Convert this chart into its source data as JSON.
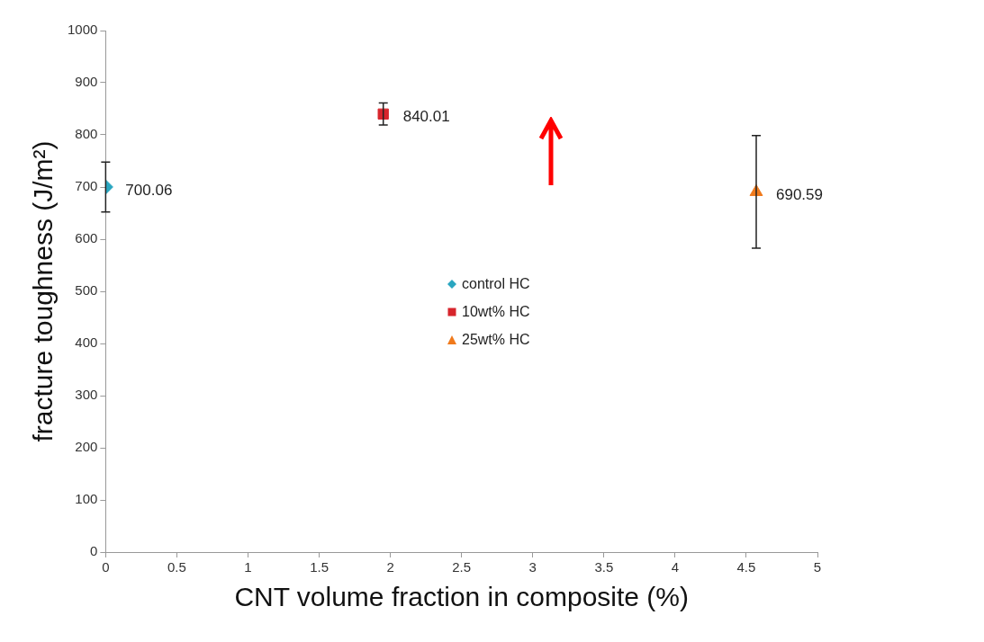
{
  "chart_data": {
    "type": "scatter",
    "xlabel": "CNT volume fraction in composite (%)",
    "ylabel": "fracture toughness (J/m²)",
    "series": [
      {
        "name": "control HC",
        "color": "#2aa6c0",
        "marker": "diamond",
        "x": [
          0
        ],
        "values": [
          700.06
        ],
        "errors": [
          48
        ]
      },
      {
        "name": "10wt% HC",
        "color": "#d7252c",
        "marker": "square",
        "x": [
          1.95
        ],
        "values": [
          840.01
        ],
        "errors": [
          21
        ]
      },
      {
        "name": "25wt% HC",
        "color": "#f07a1c",
        "marker": "triangle",
        "x": [
          4.57
        ],
        "values": [
          690.59
        ],
        "errors": [
          108
        ]
      }
    ],
    "xlim": [
      0,
      5
    ],
    "xticks": [
      0,
      0.5,
      1,
      1.5,
      2,
      2.5,
      3,
      3.5,
      4,
      4.5,
      5
    ],
    "ylim": [
      0,
      1000
    ],
    "yticks": [
      0,
      100,
      200,
      300,
      400,
      500,
      600,
      700,
      800,
      900,
      1000
    ],
    "grid": false,
    "legend": "center",
    "data_labels": true
  }
}
